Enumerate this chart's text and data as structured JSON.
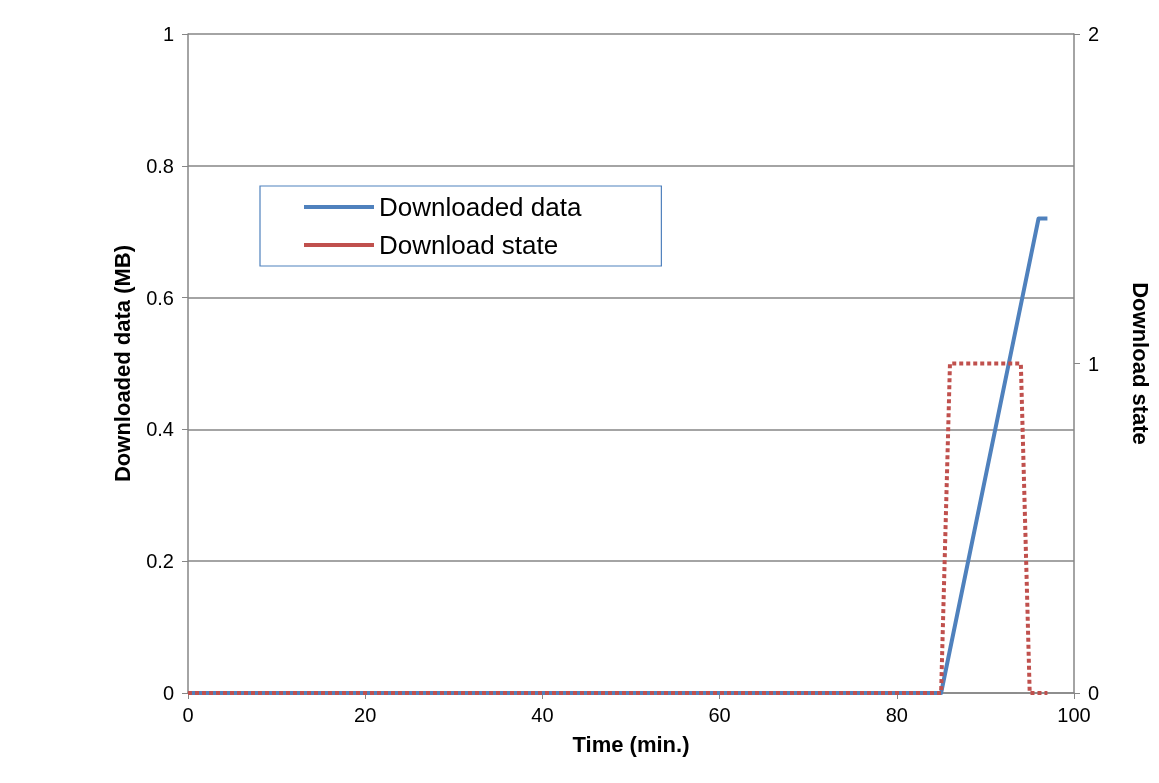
{
  "chart_data": {
    "type": "line",
    "xlabel": "Time (min.)",
    "ylabel": "Downloaded data (MB)",
    "y2label": "Download state",
    "xlim": [
      0,
      100
    ],
    "xticks": [
      0,
      20,
      40,
      60,
      80,
      100
    ],
    "ylim": [
      0,
      1
    ],
    "yticks": [
      0,
      0.2,
      0.4,
      0.6,
      0.8,
      1
    ],
    "y2lim": [
      0,
      2
    ],
    "y2ticks": [
      0,
      1,
      2
    ],
    "grid": "y",
    "legend": "top left",
    "marker": "none",
    "series": [
      {
        "name": "Downloaded data",
        "color": "#4f81bd",
        "line_style": "solid",
        "x": [
          0,
          85,
          96,
          97
        ],
        "values": [
          0,
          0,
          0.72,
          0.72
        ]
      },
      {
        "name": "Download state",
        "color": "#c0504d",
        "line_style": "dashed",
        "axis": "y2",
        "x": [
          0,
          85,
          86,
          94,
          95,
          97
        ],
        "values": [
          0,
          0,
          1,
          1,
          0,
          0
        ]
      }
    ]
  }
}
